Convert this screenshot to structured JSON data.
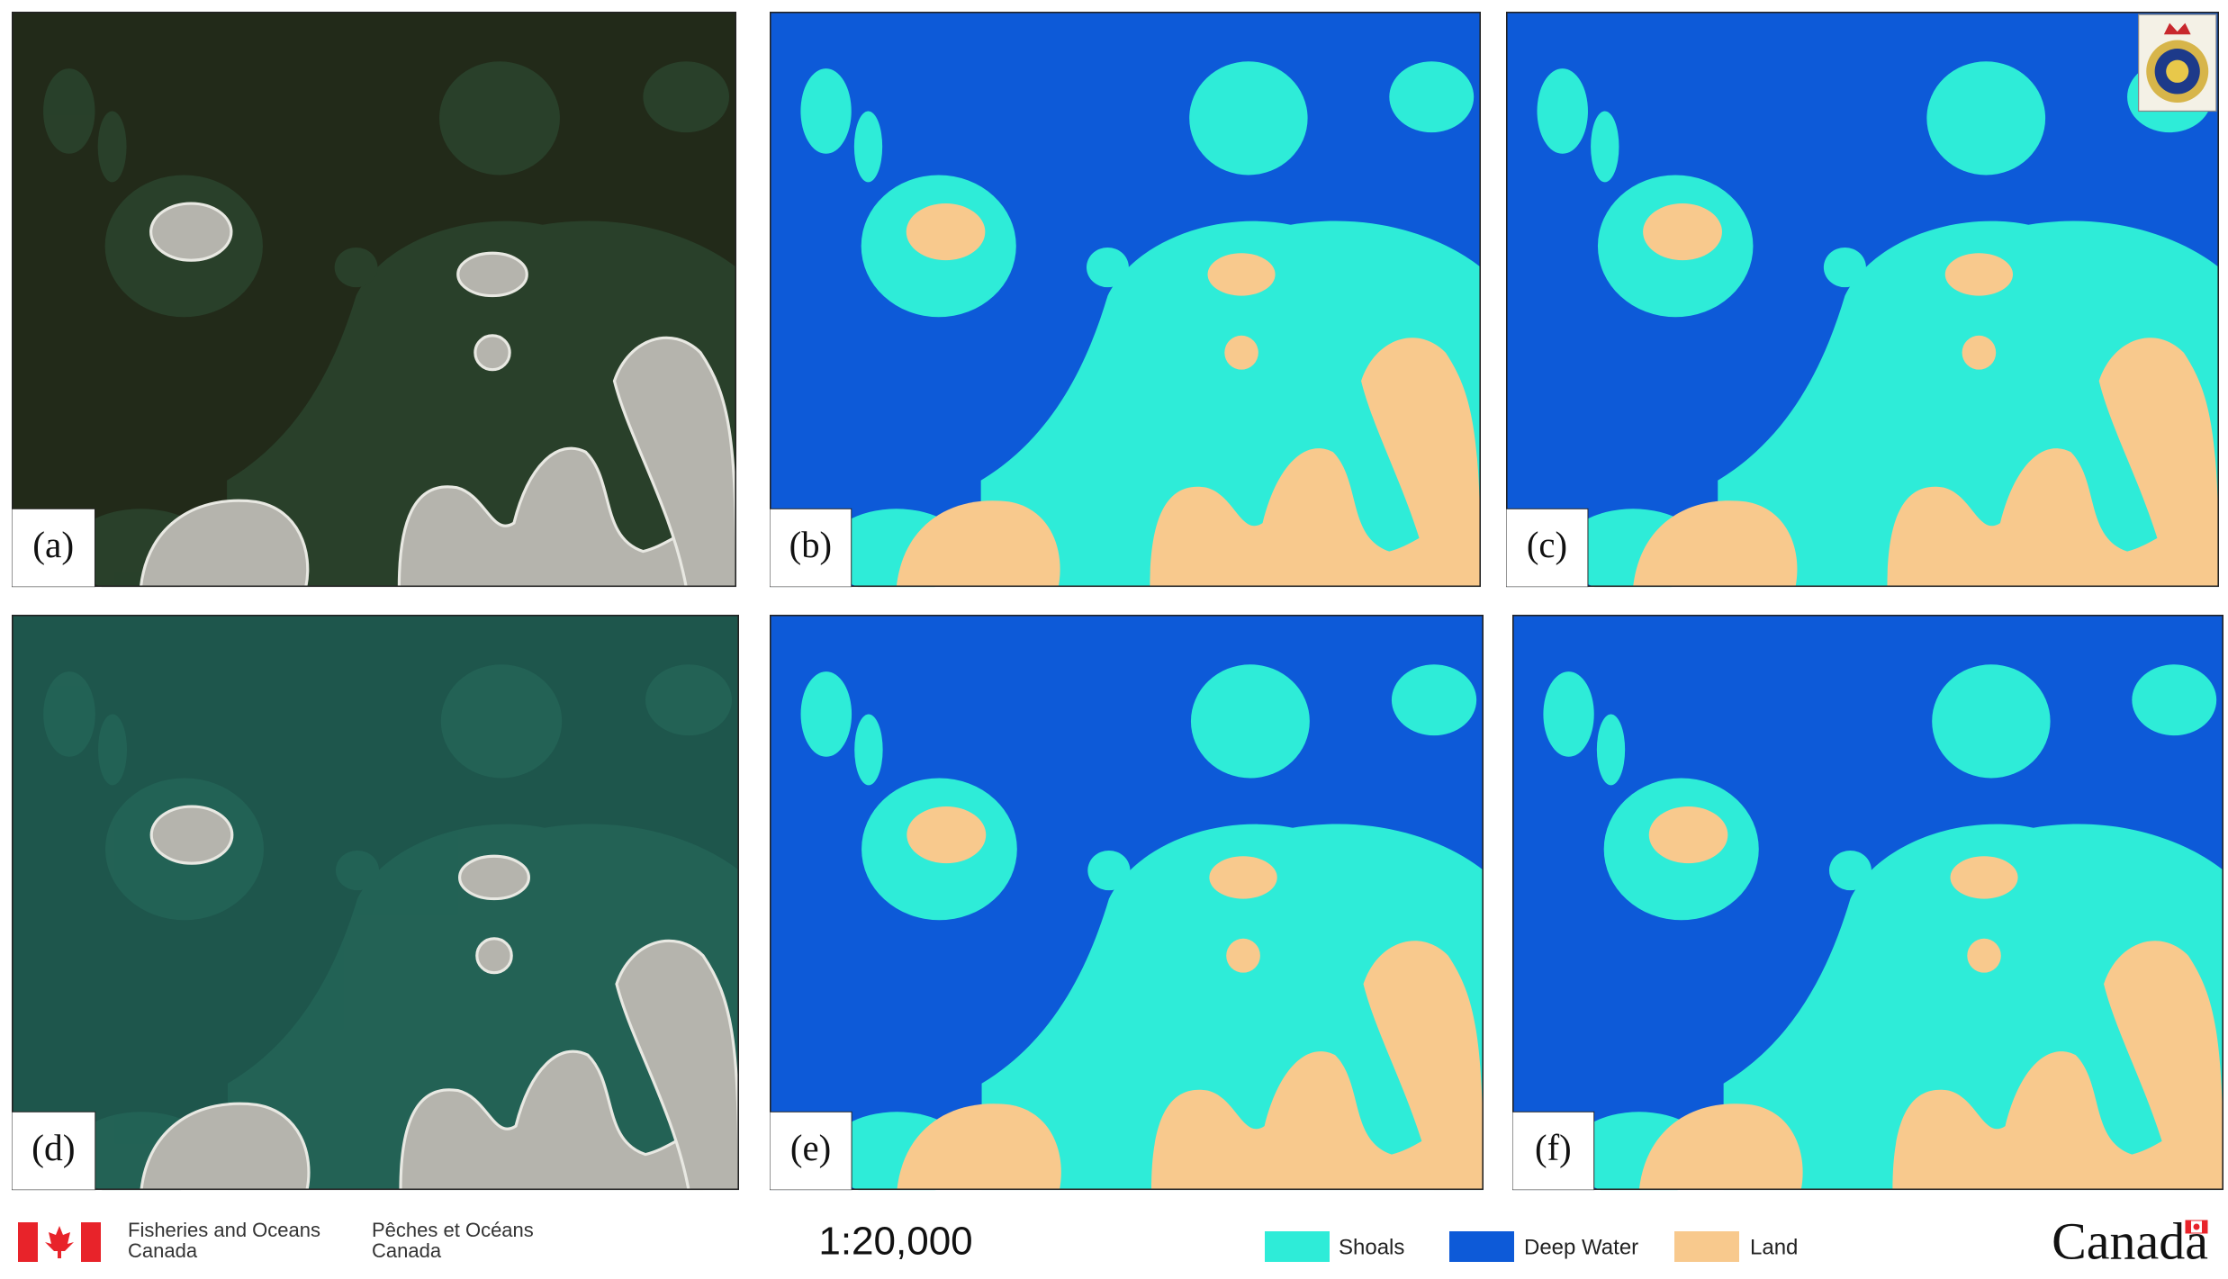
{
  "panels": [
    {
      "label": "(a)"
    },
    {
      "label": "(b)"
    },
    {
      "label": "(c)"
    },
    {
      "label": "(d)"
    },
    {
      "label": "(e)"
    },
    {
      "label": "(f)"
    }
  ],
  "footer": {
    "department_en": [
      "Fisheries and Oceans",
      "Canada"
    ],
    "department_fr": [
      "Pêches et Océans",
      "Canada"
    ],
    "scale": "1:20,000",
    "legend": [
      {
        "name": "Shoals",
        "color": "#2eecd8"
      },
      {
        "name": "Deep Water",
        "color": "#0d5ad8"
      },
      {
        "name": "Land",
        "color": "#f8c98d"
      }
    ],
    "wordmark": "Canada"
  }
}
